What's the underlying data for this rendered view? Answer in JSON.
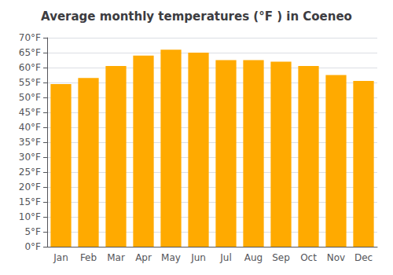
{
  "chart_data": {
    "type": "bar",
    "title": "Average monthly temperatures (°F ) in Coeneo",
    "categories": [
      "Jan",
      "Feb",
      "Mar",
      "Apr",
      "May",
      "Jun",
      "Jul",
      "Aug",
      "Sep",
      "Oct",
      "Nov",
      "Dec"
    ],
    "values": [
      54.5,
      56.5,
      60.5,
      64.0,
      66.0,
      65.0,
      62.5,
      62.5,
      62.0,
      60.5,
      57.5,
      55.5
    ],
    "color": "#FFAA00",
    "ylim": [
      0,
      70
    ],
    "yticks": [
      {
        "value": 0,
        "label": "0°F"
      },
      {
        "value": 5,
        "label": "5°F"
      },
      {
        "value": 10,
        "label": "10°F"
      },
      {
        "value": 15,
        "label": "15°F"
      },
      {
        "value": 20,
        "label": "20°F"
      },
      {
        "value": 25,
        "label": "25°F"
      },
      {
        "value": 30,
        "label": "30°F"
      },
      {
        "value": 35,
        "label": "35°F"
      },
      {
        "value": 40,
        "label": "40°F"
      },
      {
        "value": 45,
        "label": "45°F"
      },
      {
        "value": 50,
        "label": "50°F"
      },
      {
        "value": 55,
        "label": "55°F"
      },
      {
        "value": 60,
        "label": "60°F"
      },
      {
        "value": 65,
        "label": "65°F"
      },
      {
        "value": 70,
        "label": "70°F"
      }
    ],
    "grid": true
  }
}
